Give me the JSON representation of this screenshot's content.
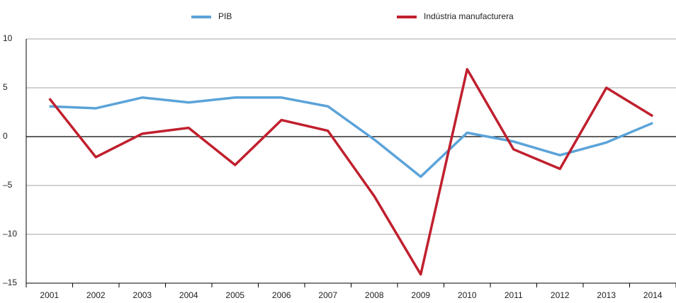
{
  "chart_data": {
    "type": "line",
    "categories": [
      "2001",
      "2002",
      "2003",
      "2004",
      "2005",
      "2006",
      "2007",
      "2008",
      "2009",
      "2010",
      "2011",
      "2012",
      "2013",
      "2014"
    ],
    "series": [
      {
        "name": "PIB",
        "color": "#5ba3d9",
        "values": [
          3.1,
          2.9,
          4.0,
          3.5,
          4.0,
          4.0,
          3.1,
          -0.3,
          -4.1,
          0.4,
          -0.5,
          -1.9,
          -0.6,
          1.4
        ]
      },
      {
        "name": "Indústria manufacturera",
        "color": "#c0202e",
        "values": [
          3.9,
          -2.1,
          0.3,
          0.9,
          -2.9,
          1.7,
          0.6,
          -6.1,
          -14.1,
          6.9,
          -1.3,
          -3.3,
          5.0,
          2.1
        ]
      }
    ],
    "ylim": [
      -15,
      10
    ],
    "yticks": [
      {
        "value": -15,
        "label": "–15"
      },
      {
        "value": -10,
        "label": "–10"
      },
      {
        "value": -5,
        "label": "–5"
      },
      0,
      5,
      10
    ],
    "grid": true,
    "legend": "top"
  }
}
